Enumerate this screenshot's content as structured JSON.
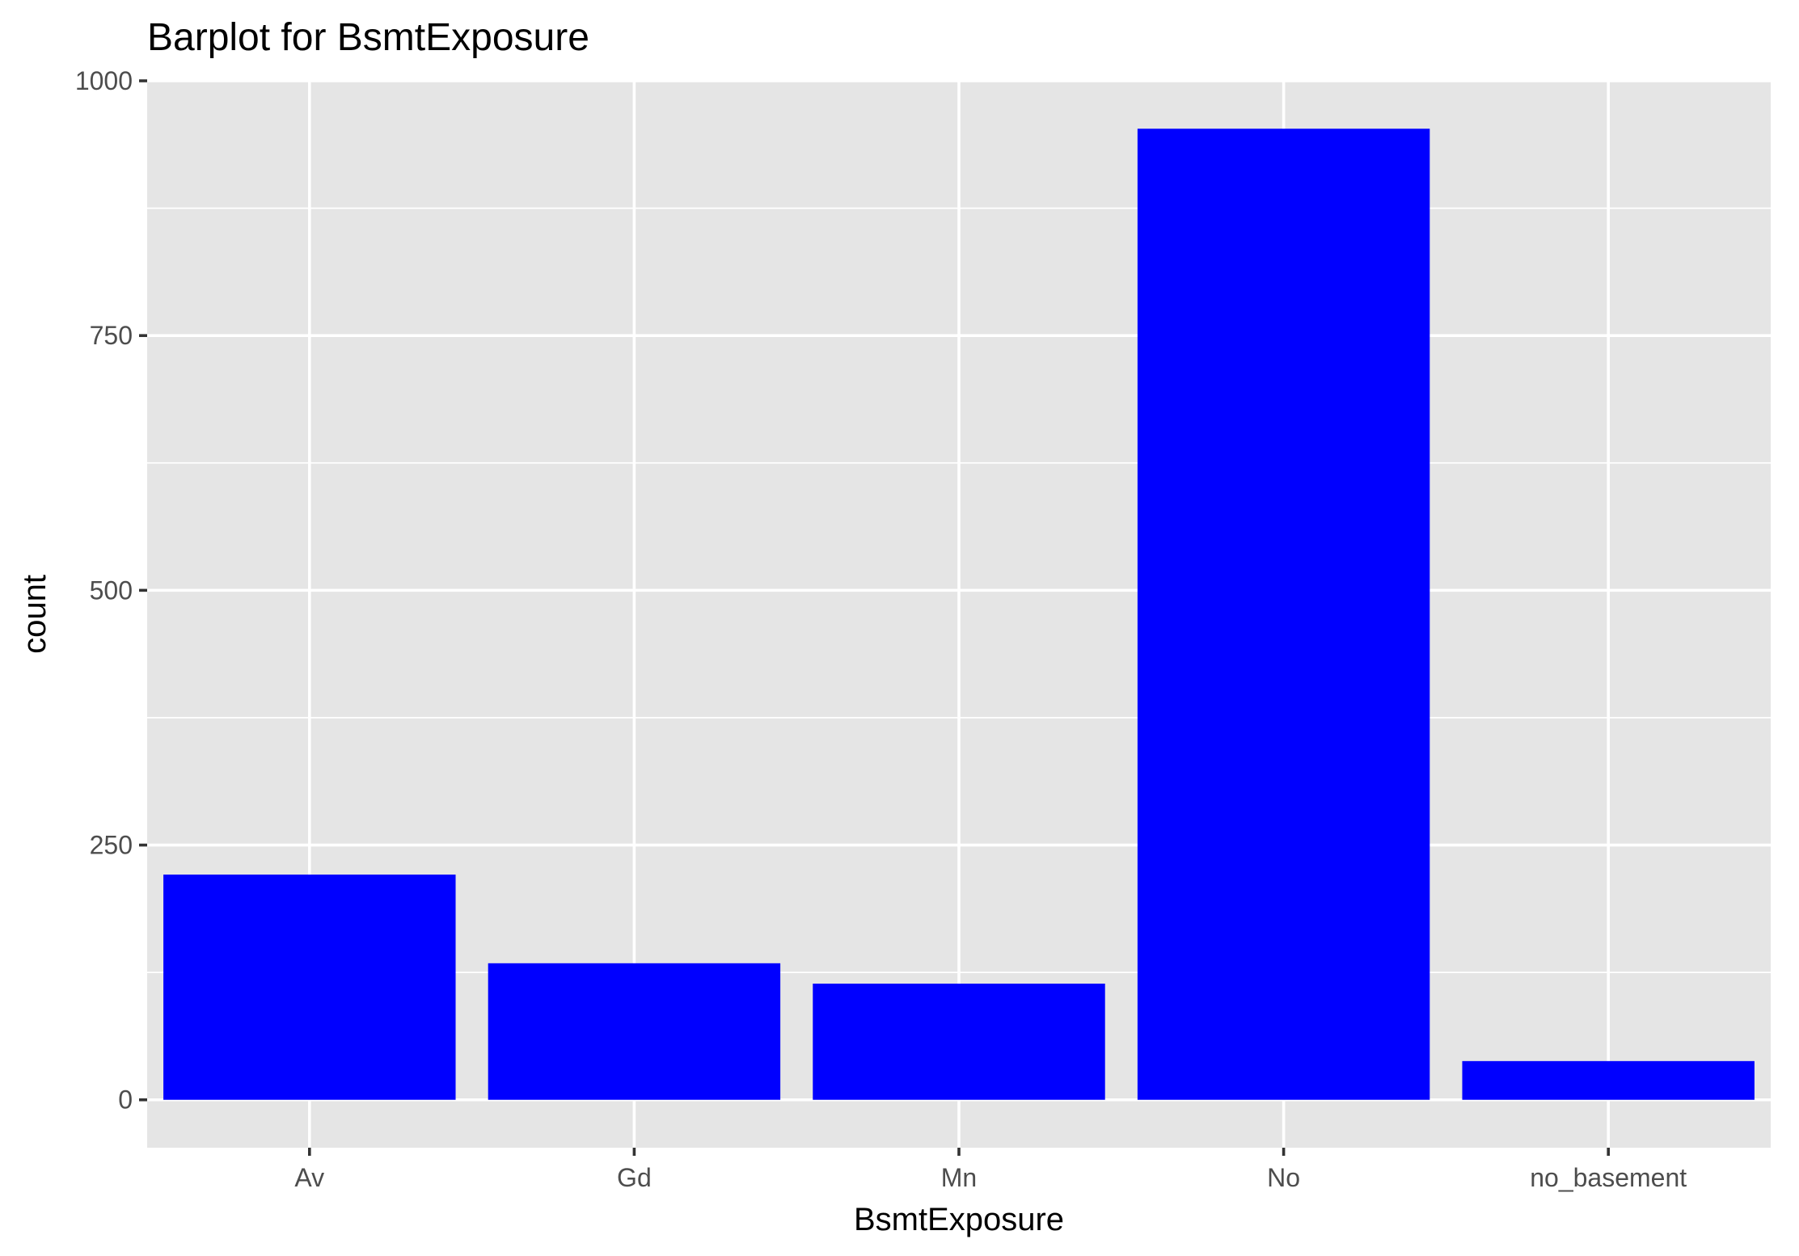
{
  "chart_data": {
    "type": "bar",
    "title": "Barplot for BsmtExposure",
    "xlabel": "BsmtExposure",
    "ylabel": "count",
    "categories": [
      "Av",
      "Gd",
      "Mn",
      "No",
      "no_basement"
    ],
    "values": [
      221,
      134,
      114,
      953,
      38
    ],
    "ylim": [
      -47,
      1000
    ],
    "y_ticks": [
      0,
      250,
      500,
      750,
      1000
    ],
    "y_tick_labels": [
      "0",
      "250",
      "500",
      "750",
      "1000"
    ],
    "bar_color": "#0000ff",
    "panel_background": "#e5e5e5",
    "grid": true,
    "legend": "none"
  }
}
